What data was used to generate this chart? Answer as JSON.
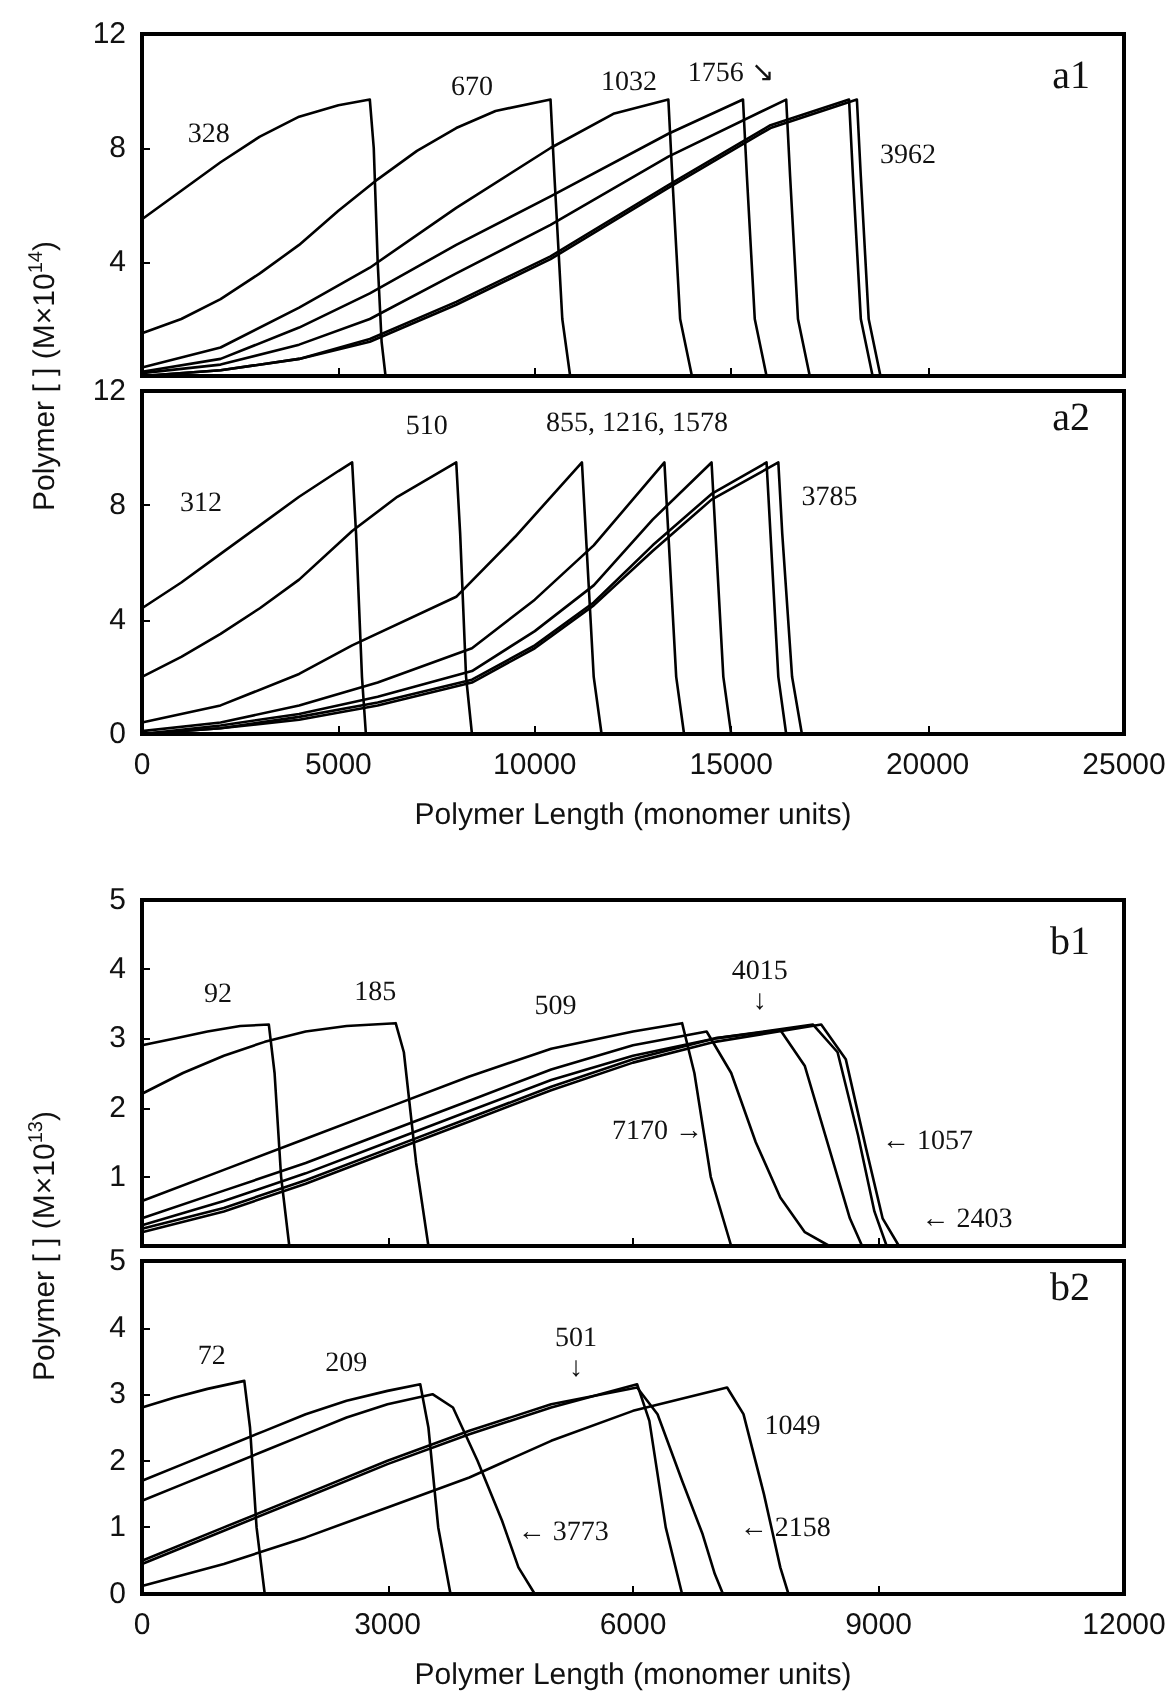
{
  "chart_data": [
    {
      "type": "line",
      "title": "a1",
      "ylabel": "Polymer [ ] (M×10$^{14}$)",
      "xlim": [
        0,
        25000
      ],
      "xticks": [
        0,
        5000,
        10000,
        15000,
        20000,
        25000
      ],
      "ylim": [
        0,
        12
      ],
      "yticks": [
        {
          "value": 0,
          "label": null
        },
        4,
        8,
        12
      ],
      "tick_labels": "y",
      "marker": "none",
      "line_style": "solid",
      "series": [
        {
          "color": "#000000",
          "x": [
            0,
            1000,
            2000,
            3000,
            4000,
            5000,
            5800,
            5900,
            6000,
            6100,
            6200
          ],
          "values": [
            5.5,
            6.5,
            7.5,
            8.4,
            9.1,
            9.5,
            9.7,
            8,
            4,
            1.2,
            0
          ]
        },
        {
          "color": "#000000",
          "x": [
            0,
            1000,
            2000,
            3000,
            4000,
            5000,
            6000,
            7000,
            8000,
            9000,
            10400,
            10500,
            10700,
            10900
          ],
          "values": [
            1.5,
            2,
            2.7,
            3.6,
            4.6,
            5.8,
            6.9,
            7.9,
            8.7,
            9.3,
            9.7,
            7,
            2,
            0
          ]
        },
        {
          "color": "#000000",
          "x": [
            0,
            2000,
            4000,
            5800,
            8000,
            10400,
            12000,
            13400,
            13500,
            13700,
            14000
          ],
          "values": [
            0.3,
            1,
            2.4,
            3.8,
            5.9,
            8,
            9.2,
            9.7,
            7,
            2,
            0
          ]
        },
        {
          "color": "#000000",
          "x": [
            0,
            2000,
            4000,
            5800,
            8000,
            10400,
            13400,
            15300,
            15400,
            15600,
            15900
          ],
          "values": [
            0.15,
            0.6,
            1.7,
            2.9,
            4.6,
            6.3,
            8.5,
            9.7,
            7,
            2,
            0
          ]
        },
        {
          "color": "#000000",
          "x": [
            0,
            2000,
            4000,
            5800,
            8000,
            10400,
            13400,
            16400,
            16500,
            16700,
            17000
          ],
          "values": [
            0.1,
            0.4,
            1.1,
            2,
            3.6,
            5.3,
            7.7,
            9.7,
            7,
            2,
            0
          ]
        },
        {
          "color": "#000000",
          "x": [
            0,
            2000,
            4000,
            5800,
            8000,
            10400,
            13400,
            16000,
            18000,
            18100,
            18300,
            18600
          ],
          "values": [
            0,
            0.2,
            0.6,
            1.3,
            2.6,
            4.2,
            6.7,
            8.8,
            9.7,
            7,
            2,
            0
          ]
        },
        {
          "color": "#000000",
          "x": [
            0,
            2000,
            4000,
            5800,
            8000,
            10400,
            13400,
            16000,
            18200,
            18300,
            18500,
            18800
          ],
          "values": [
            0,
            0.2,
            0.6,
            1.2,
            2.5,
            4.1,
            6.6,
            8.7,
            9.7,
            7,
            2,
            0
          ]
        }
      ],
      "annotations": [
        "328",
        "670",
        "1032",
        "1756 ↘",
        "3962"
      ]
    },
    {
      "type": "line",
      "title": "a2",
      "xlabel": "Polymer Length (monomer units)",
      "xlim": [
        0,
        25000
      ],
      "xticks": [
        0,
        5000,
        10000,
        15000,
        20000,
        25000
      ],
      "ylim": [
        0,
        12
      ],
      "yticks": [
        0,
        4,
        8,
        12
      ],
      "marker": "none",
      "line_style": "solid",
      "series": [
        {
          "color": "#000000",
          "x": [
            0,
            1000,
            2000,
            3000,
            4000,
            5000,
            5350,
            5450,
            5600,
            5700
          ],
          "values": [
            4.4,
            5.3,
            6.3,
            7.3,
            8.3,
            9.2,
            9.5,
            7,
            2,
            0
          ]
        },
        {
          "color": "#000000",
          "x": [
            0,
            1000,
            2000,
            3000,
            4000,
            5350,
            6500,
            8000,
            8100,
            8250,
            8400
          ],
          "values": [
            2,
            2.7,
            3.5,
            4.4,
            5.4,
            7.1,
            8.3,
            9.5,
            7,
            2,
            0
          ]
        },
        {
          "color": "#000000",
          "x": [
            0,
            2000,
            4000,
            5350,
            8000,
            9500,
            11200,
            11300,
            11500,
            11700
          ],
          "values": [
            0.4,
            1,
            2.1,
            3.1,
            4.8,
            6.9,
            9.5,
            7,
            2,
            0
          ]
        },
        {
          "color": "#000000",
          "x": [
            0,
            2000,
            4000,
            6000,
            8400,
            10000,
            11500,
            13300,
            13400,
            13600,
            13800
          ],
          "values": [
            0.1,
            0.4,
            1,
            1.8,
            3,
            4.7,
            6.6,
            9.5,
            7,
            2,
            0
          ]
        },
        {
          "color": "#000000",
          "x": [
            0,
            2000,
            4000,
            6000,
            8400,
            10000,
            11500,
            13000,
            14500,
            14600,
            14800,
            15000
          ],
          "values": [
            0,
            0.3,
            0.7,
            1.3,
            2.2,
            3.6,
            5.2,
            7.5,
            9.5,
            7,
            2,
            0
          ]
        },
        {
          "color": "#000000",
          "x": [
            0,
            2000,
            4000,
            6000,
            8400,
            10000,
            11500,
            13000,
            14500,
            15900,
            16000,
            16200,
            16400
          ],
          "values": [
            0,
            0.2,
            0.6,
            1.1,
            1.9,
            3.1,
            4.6,
            6.6,
            8.4,
            9.5,
            7,
            2,
            0
          ]
        },
        {
          "color": "#000000",
          "x": [
            0,
            2000,
            4000,
            6000,
            8400,
            10000,
            11500,
            13000,
            14500,
            16200,
            16300,
            16550,
            16800
          ],
          "values": [
            0,
            0.2,
            0.5,
            1,
            1.8,
            3,
            4.5,
            6.4,
            8.2,
            9.5,
            7,
            2,
            0
          ]
        }
      ],
      "annotations": [
        "312",
        "510",
        "855, 1216, 1578",
        "3785"
      ]
    },
    {
      "type": "line",
      "title": "b1",
      "ylabel": "Polymer [ ] (M×10$^{13}$)",
      "xlim": [
        0,
        12000
      ],
      "xticks": [
        0,
        3000,
        6000,
        9000,
        12000
      ],
      "ylim": [
        0,
        5
      ],
      "yticks": [
        {
          "value": 0,
          "label": null
        },
        1,
        2,
        3,
        4,
        5
      ],
      "tick_labels": "y",
      "marker": "none",
      "line_style": "solid",
      "series": [
        {
          "color": "#000000",
          "x": [
            0,
            400,
            800,
            1200,
            1550,
            1620,
            1700,
            1800
          ],
          "values": [
            2.9,
            3,
            3.1,
            3.18,
            3.2,
            2.5,
            1,
            0
          ]
        },
        {
          "color": "#000000",
          "x": [
            0,
            500,
            1000,
            1500,
            2000,
            2500,
            3100,
            3200,
            3350,
            3500
          ],
          "values": [
            2.2,
            2.5,
            2.75,
            2.95,
            3.1,
            3.18,
            3.22,
            2.8,
            1.2,
            0
          ]
        },
        {
          "color": "#000000",
          "x": [
            0,
            1000,
            2000,
            3000,
            4000,
            5000,
            6000,
            6600,
            6750,
            6950,
            7200
          ],
          "values": [
            0.65,
            1.1,
            1.55,
            2,
            2.45,
            2.85,
            3.1,
            3.22,
            2.5,
            1,
            0
          ]
        },
        {
          "color": "#000000",
          "x": [
            0,
            1000,
            2000,
            3000,
            4000,
            5000,
            6000,
            6900,
            7200,
            7500,
            7800,
            8100,
            8400
          ],
          "values": [
            0.4,
            0.8,
            1.2,
            1.65,
            2.1,
            2.55,
            2.9,
            3.1,
            2.5,
            1.5,
            0.7,
            0.2,
            0
          ]
        },
        {
          "color": "#000000",
          "x": [
            0,
            1000,
            2000,
            3000,
            4000,
            5000,
            6000,
            7000,
            7800,
            8100,
            8400,
            8650,
            8800
          ],
          "values": [
            0.3,
            0.65,
            1.05,
            1.5,
            1.95,
            2.4,
            2.75,
            3,
            3.12,
            2.6,
            1.4,
            0.4,
            0
          ]
        },
        {
          "color": "#000000",
          "x": [
            0,
            1000,
            2000,
            3000,
            4000,
            5000,
            6000,
            7000,
            8200,
            8500,
            8750,
            8950,
            9100
          ],
          "values": [
            0.25,
            0.55,
            0.95,
            1.4,
            1.85,
            2.3,
            2.7,
            3,
            3.2,
            2.8,
            1.6,
            0.5,
            0
          ]
        },
        {
          "color": "#000000",
          "x": [
            0,
            1000,
            2000,
            3000,
            4000,
            5000,
            6000,
            7000,
            8300,
            8600,
            8850,
            9050,
            9250
          ],
          "values": [
            0.2,
            0.5,
            0.9,
            1.35,
            1.8,
            2.25,
            2.65,
            2.95,
            3.2,
            2.7,
            1.4,
            0.4,
            0
          ]
        }
      ],
      "annotations": [
        "92",
        "185",
        "509",
        "4015\n↓",
        "7170 →",
        "← 1057",
        "← 2403"
      ]
    },
    {
      "type": "line",
      "title": "b2",
      "xlabel": "Polymer Length (monomer units)",
      "xlim": [
        0,
        12000
      ],
      "xticks": [
        0,
        3000,
        6000,
        9000,
        12000
      ],
      "ylim": [
        0,
        5
      ],
      "yticks": [
        0,
        1,
        2,
        3,
        4,
        5
      ],
      "marker": "none",
      "line_style": "solid",
      "series": [
        {
          "color": "#000000",
          "x": [
            0,
            400,
            800,
            1250,
            1320,
            1400,
            1500
          ],
          "values": [
            2.8,
            2.95,
            3.08,
            3.2,
            2.5,
            1,
            0
          ]
        },
        {
          "color": "#000000",
          "x": [
            0,
            500,
            1000,
            1500,
            2000,
            2500,
            3000,
            3400,
            3500,
            3620,
            3770
          ],
          "values": [
            1.7,
            1.95,
            2.2,
            2.45,
            2.7,
            2.9,
            3.05,
            3.15,
            2.5,
            1,
            0
          ]
        },
        {
          "color": "#000000",
          "x": [
            0,
            500,
            1000,
            1500,
            2000,
            2500,
            3000,
            3550,
            3800,
            4100,
            4400,
            4600,
            4800
          ],
          "values": [
            1.4,
            1.65,
            1.9,
            2.15,
            2.4,
            2.65,
            2.85,
            3,
            2.8,
            2,
            1.1,
            0.4,
            0
          ]
        },
        {
          "color": "#000000",
          "x": [
            0,
            1000,
            2000,
            3000,
            4000,
            5000,
            6050,
            6200,
            6400,
            6600
          ],
          "values": [
            0.45,
            0.95,
            1.45,
            1.95,
            2.4,
            2.8,
            3.15,
            2.6,
            1,
            0
          ]
        },
        {
          "color": "#000000",
          "x": [
            0,
            1000,
            2000,
            3000,
            4000,
            5000,
            6050,
            6300,
            6600,
            6850,
            7000,
            7100
          ],
          "values": [
            0.5,
            1,
            1.5,
            2,
            2.45,
            2.85,
            3.1,
            2.7,
            1.7,
            0.9,
            0.3,
            0
          ]
        },
        {
          "color": "#000000",
          "x": [
            0,
            1000,
            2000,
            3000,
            4000,
            5000,
            6000,
            7150,
            7350,
            7600,
            7800,
            7900
          ],
          "values": [
            0.12,
            0.45,
            0.85,
            1.3,
            1.75,
            2.3,
            2.75,
            3.1,
            2.7,
            1.5,
            0.4,
            0
          ]
        }
      ],
      "annotations": [
        "72",
        "209",
        "501\n↓",
        "1049",
        "← 3773",
        "← 2158"
      ]
    }
  ]
}
